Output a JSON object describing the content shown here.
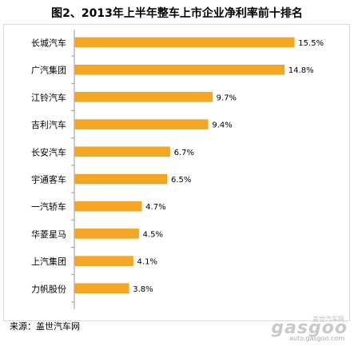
{
  "title": "图2、2013年上半年整车上市企业净利率前十排名",
  "source": "来源：盖世汽车网",
  "watermark": {
    "brand": "gasgoo",
    "brand_cn": "盖世汽车网",
    "url": "auto.gasgoo.com"
  },
  "colors": {
    "bar": "#F5A623",
    "bar_edge": "#E8961A",
    "axis": "#999999",
    "text": "#000000"
  },
  "chart_data": {
    "type": "bar",
    "orientation": "horizontal",
    "categories": [
      "长城汽车",
      "广汽集团",
      "江铃汽车",
      "吉利汽车",
      "长安汽车",
      "宇通客车",
      "一汽轿车",
      "华菱星马",
      "上汽集团",
      "力帆股份"
    ],
    "values": [
      15.5,
      14.8,
      9.7,
      9.4,
      6.7,
      6.5,
      4.7,
      4.5,
      4.1,
      3.8
    ],
    "data_labels": [
      "15.5%",
      "14.8%",
      "9.7%",
      "9.4%",
      "6.7%",
      "6.5%",
      "4.7%",
      "4.5%",
      "4.1%",
      "3.8%"
    ],
    "xlim": [
      0,
      16.5
    ],
    "grid": false,
    "legend": "none"
  }
}
